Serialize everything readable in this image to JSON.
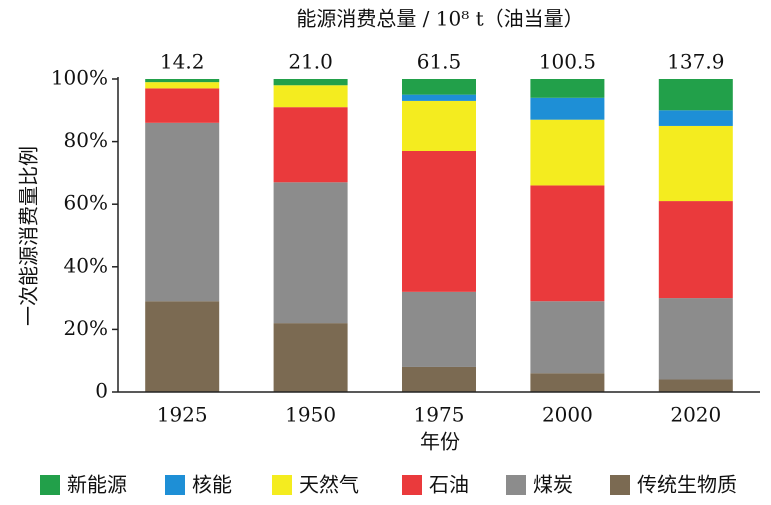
{
  "chart_data": {
    "type": "stacked_bar_percent",
    "title": "能源消费总量 / 10⁸ t（油当量）",
    "annotations": [
      "14.2",
      "21.0",
      "61.5",
      "100.5",
      "137.9"
    ],
    "xlabel": "年份",
    "ylabel": "一次能源消费量比例",
    "categories": [
      "1925",
      "1950",
      "1975",
      "2000",
      "2020"
    ],
    "series": [
      {
        "name": "新能源",
        "color": "#22a04a",
        "values": [
          1,
          2,
          5,
          6,
          10
        ]
      },
      {
        "name": "核能",
        "color": "#1e8fd6",
        "values": [
          0,
          0,
          2,
          7,
          5
        ]
      },
      {
        "name": "天然气",
        "color": "#f4ec1f",
        "values": [
          2,
          7,
          16,
          21,
          24
        ]
      },
      {
        "name": "石油",
        "color": "#ea3a3c",
        "values": [
          11,
          24,
          45,
          37,
          31
        ]
      },
      {
        "name": "煤炭",
        "color": "#8c8c8c",
        "values": [
          57,
          45,
          24,
          23,
          26
        ]
      },
      {
        "name": "传统生物质",
        "color": "#7b6a52",
        "values": [
          29,
          22,
          8,
          6,
          4
        ]
      }
    ],
    "ylim": [
      0,
      100
    ],
    "yticks": [
      0,
      {
        "value": 20,
        "label": "20%"
      },
      {
        "value": 40,
        "label": "40%"
      },
      {
        "value": 60,
        "label": "60%"
      },
      {
        "value": 80,
        "label": "80%"
      },
      {
        "value": 100,
        "label": "100%"
      }
    ],
    "legend": "bottom"
  }
}
